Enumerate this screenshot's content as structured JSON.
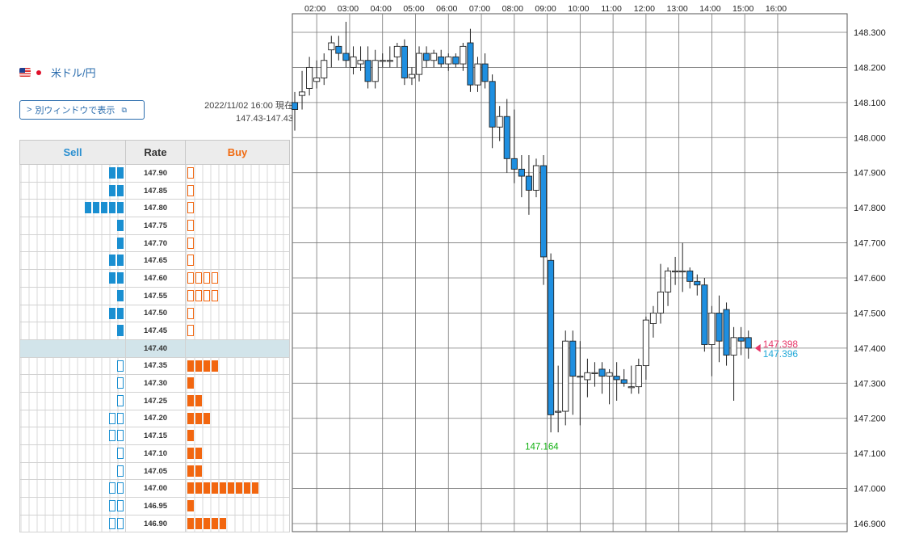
{
  "pair": {
    "label": "米ドル/円"
  },
  "window_button": {
    "label": "別ウィンドウで表示"
  },
  "timestamp": "2022/11/02 16:00 現在",
  "rate_range": "147.43-147.43",
  "book": {
    "headers": {
      "sell": "Sell",
      "rate": "Rate",
      "buy": "Buy"
    },
    "current_rate": "147.40",
    "rows": [
      {
        "rate": "147.90",
        "sell": 2,
        "sell_style": "filled",
        "buy": 1,
        "buy_style": "outline"
      },
      {
        "rate": "147.85",
        "sell": 2,
        "sell_style": "filled",
        "buy": 1,
        "buy_style": "outline"
      },
      {
        "rate": "147.80",
        "sell": 5,
        "sell_style": "filled",
        "buy": 1,
        "buy_style": "outline"
      },
      {
        "rate": "147.75",
        "sell": 1,
        "sell_style": "filled",
        "buy": 1,
        "buy_style": "outline"
      },
      {
        "rate": "147.70",
        "sell": 1,
        "sell_style": "filled",
        "buy": 1,
        "buy_style": "outline"
      },
      {
        "rate": "147.65",
        "sell": 2,
        "sell_style": "filled",
        "buy": 1,
        "buy_style": "outline"
      },
      {
        "rate": "147.60",
        "sell": 2,
        "sell_style": "filled",
        "buy": 4,
        "buy_style": "outline"
      },
      {
        "rate": "147.55",
        "sell": 1,
        "sell_style": "filled",
        "buy": 4,
        "buy_style": "outline"
      },
      {
        "rate": "147.50",
        "sell": 2,
        "sell_style": "filled",
        "buy": 1,
        "buy_style": "outline"
      },
      {
        "rate": "147.45",
        "sell": 1,
        "sell_style": "filled",
        "buy": 1,
        "buy_style": "outline"
      },
      {
        "rate": "147.40",
        "sell": 0,
        "sell_style": "filled",
        "buy": 0,
        "buy_style": "filled",
        "current": true
      },
      {
        "rate": "147.35",
        "sell": 1,
        "sell_style": "outline",
        "buy": 4,
        "buy_style": "filled"
      },
      {
        "rate": "147.30",
        "sell": 1,
        "sell_style": "outline",
        "buy": 1,
        "buy_style": "filled"
      },
      {
        "rate": "147.25",
        "sell": 1,
        "sell_style": "outline",
        "buy": 2,
        "buy_style": "filled"
      },
      {
        "rate": "147.20",
        "sell": 2,
        "sell_style": "outline",
        "buy": 3,
        "buy_style": "filled"
      },
      {
        "rate": "147.15",
        "sell": 2,
        "sell_style": "outline",
        "buy": 1,
        "buy_style": "filled"
      },
      {
        "rate": "147.10",
        "sell": 1,
        "sell_style": "outline",
        "buy": 2,
        "buy_style": "filled"
      },
      {
        "rate": "147.05",
        "sell": 1,
        "sell_style": "outline",
        "buy": 2,
        "buy_style": "filled"
      },
      {
        "rate": "147.00",
        "sell": 2,
        "sell_style": "outline",
        "buy": 9,
        "buy_style": "filled"
      },
      {
        "rate": "146.95",
        "sell": 2,
        "sell_style": "outline",
        "buy": 1,
        "buy_style": "filled"
      },
      {
        "rate": "146.90",
        "sell": 2,
        "sell_style": "outline",
        "buy": 5,
        "buy_style": "filled"
      }
    ]
  },
  "colors": {
    "sell": "#1a8fd1",
    "buy": "#f2660f",
    "bull": "#1f8fe0",
    "ask": "#e8386a",
    "bid": "#1fa8d8",
    "low": "#10b010"
  },
  "chart_data": {
    "type": "candlestick",
    "x_ticks": [
      "02:00",
      "03:00",
      "04:00",
      "05:00",
      "06:00",
      "07:00",
      "08:00",
      "09:00",
      "10:00",
      "11:00",
      "12:00",
      "13:00",
      "14:00",
      "15:00",
      "16:00"
    ],
    "y_ticks": [
      "148.300",
      "148.200",
      "148.100",
      "148.000",
      "147.900",
      "147.800",
      "147.700",
      "147.600",
      "147.500",
      "147.400",
      "147.300",
      "147.200",
      "147.100",
      "147.000",
      "146.900"
    ],
    "ylim": [
      146.88,
      148.37
    ],
    "grid": true,
    "candles": [
      {
        "o": 148.1,
        "h": 148.13,
        "l": 148.02,
        "c": 148.08
      },
      {
        "o": 148.12,
        "h": 148.19,
        "l": 148.08,
        "c": 148.13
      },
      {
        "o": 148.14,
        "h": 148.23,
        "l": 148.12,
        "c": 148.2
      },
      {
        "o": 148.16,
        "h": 148.22,
        "l": 148.14,
        "c": 148.17
      },
      {
        "o": 148.17,
        "h": 148.24,
        "l": 148.15,
        "c": 148.22
      },
      {
        "o": 148.25,
        "h": 148.29,
        "l": 148.2,
        "c": 148.27
      },
      {
        "o": 148.26,
        "h": 148.29,
        "l": 148.22,
        "c": 148.24
      },
      {
        "o": 148.24,
        "h": 148.33,
        "l": 148.2,
        "c": 148.22
      },
      {
        "o": 148.2,
        "h": 148.26,
        "l": 148.18,
        "c": 148.23
      },
      {
        "o": 148.21,
        "h": 148.26,
        "l": 148.19,
        "c": 148.22
      },
      {
        "o": 148.22,
        "h": 148.26,
        "l": 148.14,
        "c": 148.16
      },
      {
        "o": 148.16,
        "h": 148.25,
        "l": 148.14,
        "c": 148.22
      },
      {
        "o": 148.22,
        "h": 148.24,
        "l": 148.2,
        "c": 148.22
      },
      {
        "o": 148.22,
        "h": 148.26,
        "l": 148.2,
        "c": 148.22
      },
      {
        "o": 148.23,
        "h": 148.27,
        "l": 148.2,
        "c": 148.26
      },
      {
        "o": 148.26,
        "h": 148.28,
        "l": 148.15,
        "c": 148.17
      },
      {
        "o": 148.17,
        "h": 148.2,
        "l": 148.15,
        "c": 148.18
      },
      {
        "o": 148.18,
        "h": 148.26,
        "l": 148.16,
        "c": 148.24
      },
      {
        "o": 148.24,
        "h": 148.26,
        "l": 148.2,
        "c": 148.22
      },
      {
        "o": 148.22,
        "h": 148.25,
        "l": 148.2,
        "c": 148.24
      },
      {
        "o": 148.23,
        "h": 148.25,
        "l": 148.2,
        "c": 148.21
      },
      {
        "o": 148.21,
        "h": 148.24,
        "l": 148.19,
        "c": 148.23
      },
      {
        "o": 148.23,
        "h": 148.24,
        "l": 148.2,
        "c": 148.21
      },
      {
        "o": 148.21,
        "h": 148.27,
        "l": 148.19,
        "c": 148.26
      },
      {
        "o": 148.27,
        "h": 148.31,
        "l": 148.13,
        "c": 148.15
      },
      {
        "o": 148.15,
        "h": 148.23,
        "l": 148.13,
        "c": 148.21
      },
      {
        "o": 148.21,
        "h": 148.24,
        "l": 148.14,
        "c": 148.16
      },
      {
        "o": 148.16,
        "h": 148.18,
        "l": 147.97,
        "c": 148.03
      },
      {
        "o": 148.03,
        "h": 148.09,
        "l": 147.99,
        "c": 148.06
      },
      {
        "o": 148.06,
        "h": 148.11,
        "l": 147.9,
        "c": 147.94
      },
      {
        "o": 147.94,
        "h": 148.08,
        "l": 147.87,
        "c": 147.91
      },
      {
        "o": 147.91,
        "h": 147.95,
        "l": 147.83,
        "c": 147.89
      },
      {
        "o": 147.89,
        "h": 147.95,
        "l": 147.78,
        "c": 147.85
      },
      {
        "o": 147.85,
        "h": 147.94,
        "l": 147.83,
        "c": 147.92
      },
      {
        "o": 147.92,
        "h": 147.95,
        "l": 147.58,
        "c": 147.66
      },
      {
        "o": 147.65,
        "h": 147.67,
        "l": 147.16,
        "c": 147.21
      },
      {
        "o": 147.22,
        "h": 147.35,
        "l": 147.16,
        "c": 147.22
      },
      {
        "o": 147.22,
        "h": 147.45,
        "l": 147.18,
        "c": 147.42
      },
      {
        "o": 147.42,
        "h": 147.45,
        "l": 147.21,
        "c": 147.32
      },
      {
        "o": 147.32,
        "h": 147.42,
        "l": 147.18,
        "c": 147.32
      },
      {
        "o": 147.31,
        "h": 147.37,
        "l": 147.26,
        "c": 147.33
      },
      {
        "o": 147.33,
        "h": 147.36,
        "l": 147.29,
        "c": 147.33
      },
      {
        "o": 147.34,
        "h": 147.36,
        "l": 147.27,
        "c": 147.32
      },
      {
        "o": 147.32,
        "h": 147.34,
        "l": 147.24,
        "c": 147.33
      },
      {
        "o": 147.32,
        "h": 147.36,
        "l": 147.25,
        "c": 147.31
      },
      {
        "o": 147.31,
        "h": 147.34,
        "l": 147.29,
        "c": 147.3
      },
      {
        "o": 147.29,
        "h": 147.35,
        "l": 147.27,
        "c": 147.29
      },
      {
        "o": 147.29,
        "h": 147.37,
        "l": 147.27,
        "c": 147.35
      },
      {
        "o": 147.35,
        "h": 147.49,
        "l": 147.31,
        "c": 147.48
      },
      {
        "o": 147.47,
        "h": 147.52,
        "l": 147.43,
        "c": 147.5
      },
      {
        "o": 147.5,
        "h": 147.64,
        "l": 147.47,
        "c": 147.56
      },
      {
        "o": 147.56,
        "h": 147.63,
        "l": 147.52,
        "c": 147.62
      },
      {
        "o": 147.62,
        "h": 147.66,
        "l": 147.58,
        "c": 147.62
      },
      {
        "o": 147.62,
        "h": 147.7,
        "l": 147.56,
        "c": 147.62
      },
      {
        "o": 147.62,
        "h": 147.63,
        "l": 147.57,
        "c": 147.59
      },
      {
        "o": 147.59,
        "h": 147.61,
        "l": 147.55,
        "c": 147.58
      },
      {
        "o": 147.58,
        "h": 147.6,
        "l": 147.39,
        "c": 147.41
      },
      {
        "o": 147.41,
        "h": 147.52,
        "l": 147.32,
        "c": 147.5
      },
      {
        "o": 147.5,
        "h": 147.55,
        "l": 147.36,
        "c": 147.42
      },
      {
        "o": 147.51,
        "h": 147.53,
        "l": 147.35,
        "c": 147.38
      },
      {
        "o": 147.38,
        "h": 147.46,
        "l": 147.25,
        "c": 147.43
      },
      {
        "o": 147.43,
        "h": 147.46,
        "l": 147.38,
        "c": 147.42
      },
      {
        "o": 147.43,
        "h": 147.45,
        "l": 147.37,
        "c": 147.4
      }
    ],
    "annotations": {
      "low_label": "147.164",
      "low_value": 147.164,
      "ask": "147.398",
      "bid": "147.396"
    }
  }
}
